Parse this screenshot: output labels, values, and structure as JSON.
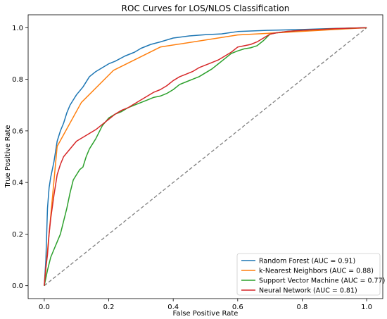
{
  "chart_data": {
    "type": "line",
    "title": "ROC Curves for LOS/NLOS Classification",
    "xlabel": "False Positive Rate",
    "ylabel": "True Positive Rate",
    "xlim": [
      -0.05,
      1.05
    ],
    "ylim": [
      -0.05,
      1.05
    ],
    "xticks": [
      "0.0",
      "0.2",
      "0.4",
      "0.6",
      "0.8",
      "1.0"
    ],
    "yticks": [
      "0.0",
      "0.2",
      "0.4",
      "0.6",
      "0.8",
      "1.0"
    ],
    "grid": false,
    "legend_position": "bottom-right",
    "diagonal": {
      "x": [
        0,
        1
      ],
      "y": [
        0,
        1
      ],
      "color": "#808080",
      "style": "dashed"
    },
    "series": [
      {
        "name": "Random Forest (AUC = 0.91)",
        "color": "#1f77b4",
        "x": [
          0,
          0.005,
          0.01,
          0.015,
          0.02,
          0.03,
          0.04,
          0.05,
          0.06,
          0.07,
          0.08,
          0.09,
          0.1,
          0.12,
          0.14,
          0.16,
          0.18,
          0.2,
          0.22,
          0.25,
          0.28,
          0.3,
          0.33,
          0.36,
          0.4,
          0.45,
          0.5,
          0.55,
          0.6,
          0.7,
          0.8,
          0.9,
          1.0
        ],
        "y": [
          0,
          0.1,
          0.3,
          0.38,
          0.42,
          0.48,
          0.56,
          0.6,
          0.63,
          0.67,
          0.7,
          0.72,
          0.74,
          0.77,
          0.81,
          0.83,
          0.845,
          0.86,
          0.87,
          0.89,
          0.905,
          0.92,
          0.935,
          0.945,
          0.96,
          0.968,
          0.973,
          0.976,
          0.985,
          0.99,
          0.993,
          0.997,
          1.0
        ]
      },
      {
        "name": "k-Nearest Neighbors (AUC = 0.88)",
        "color": "#ff7f0e",
        "x": [
          0,
          0.04,
          0.115,
          0.215,
          0.36,
          0.6,
          0.72,
          1.0
        ],
        "y": [
          0,
          0.54,
          0.71,
          0.835,
          0.925,
          0.972,
          0.98,
          1.0
        ]
      },
      {
        "name": "Support Vector Machine (AUC = 0.77)",
        "color": "#2ca02c",
        "x": [
          0,
          0.01,
          0.02,
          0.03,
          0.04,
          0.05,
          0.06,
          0.07,
          0.08,
          0.09,
          0.1,
          0.11,
          0.12,
          0.13,
          0.14,
          0.15,
          0.16,
          0.18,
          0.2,
          0.22,
          0.24,
          0.26,
          0.28,
          0.3,
          0.32,
          0.34,
          0.36,
          0.38,
          0.4,
          0.42,
          0.44,
          0.46,
          0.48,
          0.5,
          0.52,
          0.54,
          0.56,
          0.58,
          0.6,
          0.62,
          0.64,
          0.66,
          0.68,
          0.7,
          0.72,
          0.75,
          0.8,
          0.85,
          0.9,
          0.95,
          1.0
        ],
        "y": [
          0,
          0.06,
          0.11,
          0.14,
          0.17,
          0.2,
          0.25,
          0.3,
          0.36,
          0.41,
          0.43,
          0.45,
          0.46,
          0.5,
          0.53,
          0.55,
          0.57,
          0.62,
          0.65,
          0.665,
          0.675,
          0.69,
          0.7,
          0.71,
          0.72,
          0.73,
          0.735,
          0.745,
          0.76,
          0.78,
          0.79,
          0.8,
          0.81,
          0.825,
          0.84,
          0.86,
          0.88,
          0.9,
          0.91,
          0.918,
          0.922,
          0.93,
          0.95,
          0.975,
          0.98,
          0.985,
          0.99,
          0.993,
          0.996,
          0.998,
          1.0
        ]
      },
      {
        "name": "Neural Network (AUC = 0.81)",
        "color": "#d62728",
        "x": [
          0,
          0.005,
          0.01,
          0.015,
          0.02,
          0.03,
          0.04,
          0.05,
          0.06,
          0.08,
          0.1,
          0.12,
          0.14,
          0.16,
          0.18,
          0.2,
          0.22,
          0.24,
          0.26,
          0.28,
          0.3,
          0.32,
          0.34,
          0.36,
          0.38,
          0.4,
          0.42,
          0.44,
          0.46,
          0.48,
          0.5,
          0.52,
          0.54,
          0.56,
          0.58,
          0.6,
          0.62,
          0.64,
          0.66,
          0.68,
          0.7,
          0.72,
          0.75,
          0.8,
          0.85,
          0.9,
          0.95,
          1.0
        ],
        "y": [
          0,
          0.07,
          0.12,
          0.2,
          0.26,
          0.35,
          0.43,
          0.47,
          0.5,
          0.53,
          0.56,
          0.575,
          0.59,
          0.605,
          0.625,
          0.645,
          0.665,
          0.68,
          0.69,
          0.705,
          0.72,
          0.735,
          0.75,
          0.76,
          0.775,
          0.795,
          0.81,
          0.82,
          0.83,
          0.845,
          0.855,
          0.865,
          0.875,
          0.89,
          0.905,
          0.925,
          0.93,
          0.935,
          0.945,
          0.96,
          0.975,
          0.98,
          0.985,
          0.99,
          0.993,
          0.996,
          0.998,
          1.0
        ]
      }
    ]
  }
}
